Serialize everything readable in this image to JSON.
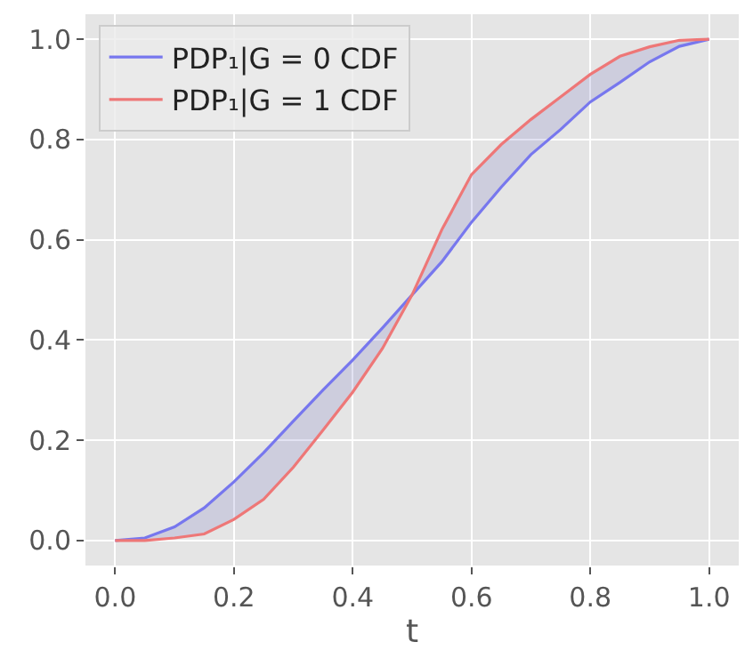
{
  "chart_data": {
    "type": "line",
    "xlabel": "t",
    "x": [
      0,
      0.05,
      0.1,
      0.15,
      0.2,
      0.25,
      0.3,
      0.35,
      0.4,
      0.45,
      0.5,
      0.55,
      0.6,
      0.65,
      0.7,
      0.75,
      0.8,
      0.85,
      0.9,
      0.95,
      1.0
    ],
    "series": [
      {
        "name": "PDP₁|G = 0 CDF",
        "color": "#7777ee",
        "values": [
          0,
          0.005,
          0.027,
          0.065,
          0.117,
          0.175,
          0.238,
          0.3,
          0.36,
          0.424,
          0.49,
          0.556,
          0.635,
          0.705,
          0.77,
          0.82,
          0.875,
          0.914,
          0.955,
          0.986,
          1.0
        ]
      },
      {
        "name": "PDP₁|G = 1 CDF",
        "color": "#ee7777",
        "values": [
          0,
          0.0,
          0.005,
          0.013,
          0.042,
          0.082,
          0.146,
          0.22,
          0.296,
          0.383,
          0.49,
          0.62,
          0.73,
          0.79,
          0.84,
          0.885,
          0.93,
          0.966,
          0.985,
          0.998,
          1.0
        ]
      }
    ],
    "xlim": [
      -0.05,
      1.05
    ],
    "ylim": [
      -0.05,
      1.05
    ],
    "xticks": [
      {
        "value": 0,
        "label": "0.0"
      },
      {
        "value": 0.2,
        "label": "0.2"
      },
      {
        "value": 0.4,
        "label": "0.4"
      },
      {
        "value": 0.6,
        "label": "0.6"
      },
      {
        "value": 0.8,
        "label": "0.8"
      },
      {
        "value": 1.0,
        "label": "1.0"
      }
    ],
    "yticks": [
      {
        "value": 0,
        "label": "0.0"
      },
      {
        "value": 0.2,
        "label": "0.2"
      },
      {
        "value": 0.4,
        "label": "0.4"
      },
      {
        "value": 0.6,
        "label": "0.6"
      },
      {
        "value": 0.8,
        "label": "0.8"
      },
      {
        "value": 1.0,
        "label": "1.0"
      }
    ],
    "grid": true,
    "legend": "top left",
    "marker": "none",
    "line_style": "solid"
  }
}
